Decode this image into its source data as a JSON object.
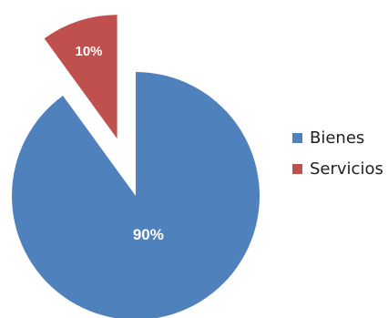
{
  "chart_data": {
    "type": "pie",
    "title": "",
    "categories": [
      "Bienes",
      "Servicios"
    ],
    "values": [
      90,
      10
    ],
    "labels": [
      "90%",
      "10%"
    ],
    "colors": [
      "#4f81bd",
      "#c0504d"
    ],
    "exploded": [
      false,
      true
    ],
    "legend_position": "right"
  },
  "legend": {
    "items": [
      {
        "label": "Bienes",
        "color": "#4f81bd"
      },
      {
        "label": "Servicios",
        "color": "#c0504d"
      }
    ]
  }
}
